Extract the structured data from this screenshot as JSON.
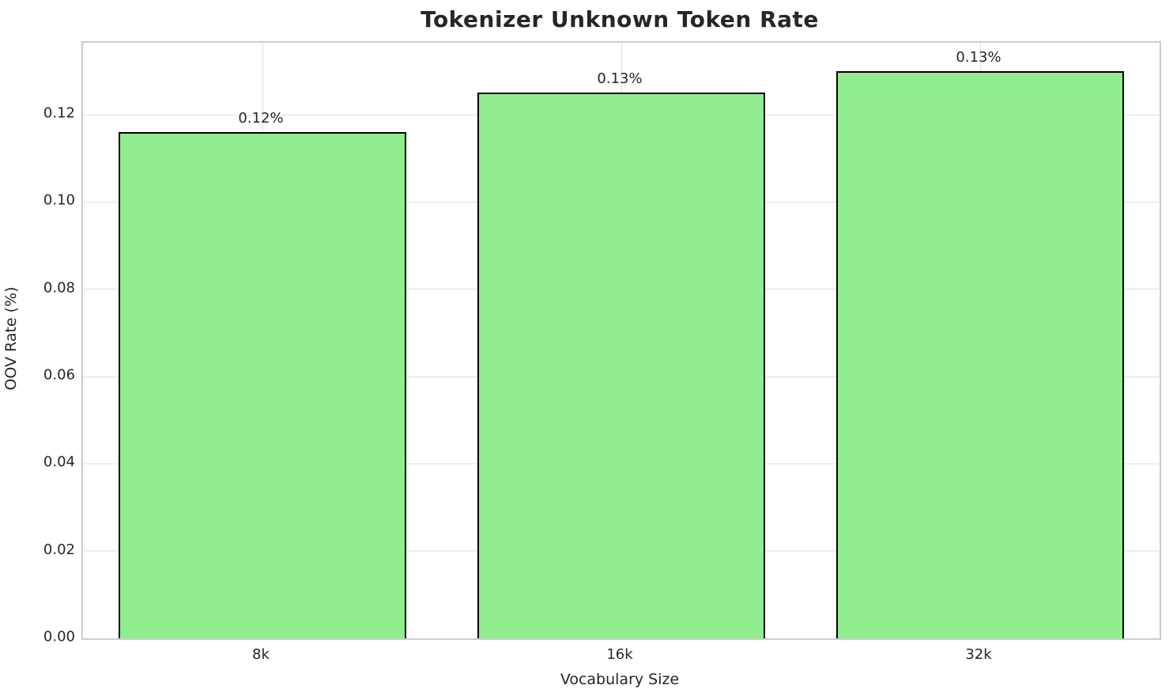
{
  "chart_data": {
    "type": "bar",
    "title": "Tokenizer Unknown Token Rate",
    "xlabel": "Vocabulary Size",
    "ylabel": "OOV Rate (%)",
    "categories": [
      "8k",
      "16k",
      "32k"
    ],
    "values": [
      0.116,
      0.125,
      0.13
    ],
    "bar_labels": [
      "0.12%",
      "0.13%",
      "0.13%"
    ],
    "yticks": [
      0.0,
      0.02,
      0.04,
      0.06,
      0.08,
      0.1,
      0.12
    ],
    "ytick_labels": [
      "0.00",
      "0.02",
      "0.04",
      "0.06",
      "0.08",
      "0.10",
      "0.12"
    ],
    "ylim": [
      0,
      0.1365
    ],
    "grid": true,
    "legend": "none",
    "bar_width_fraction": 0.8,
    "colors": {
      "bar_fill": "#90EE90",
      "bar_edge": "#000000",
      "grid": "#e0e0e0",
      "spine": "#cccccc",
      "text": "#262626"
    }
  }
}
